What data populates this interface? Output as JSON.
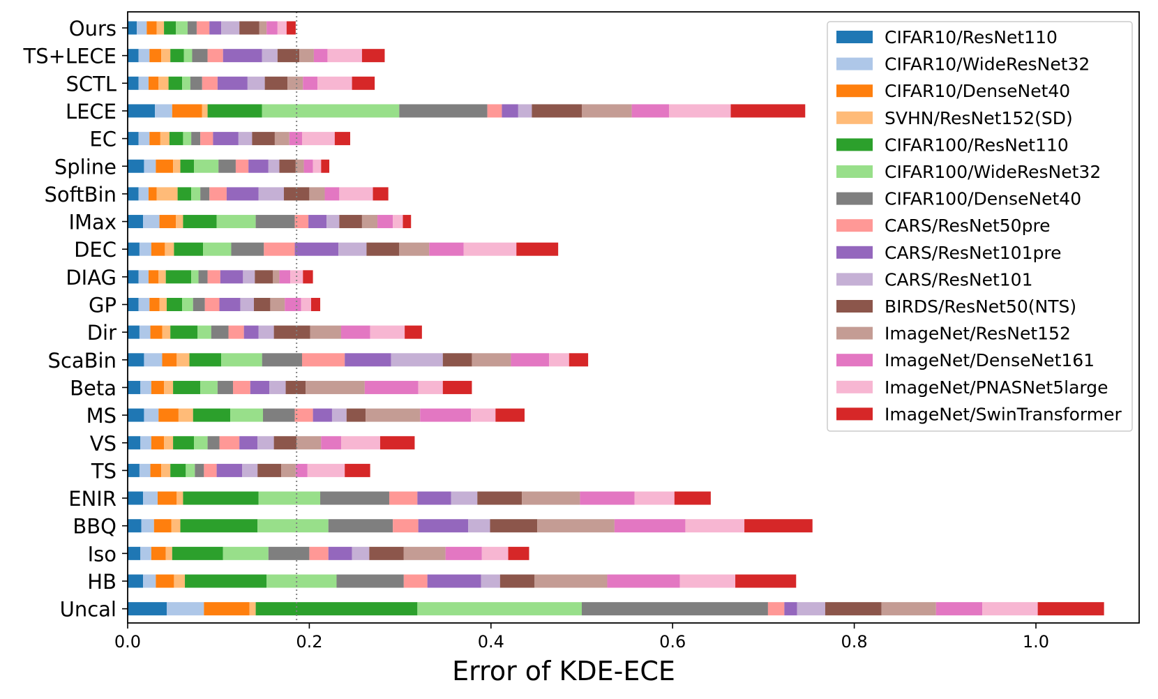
{
  "chart_data": {
    "type": "bar",
    "orientation": "horizontal",
    "stacked": true,
    "title": "",
    "xlabel": "Error of KDE-ECE",
    "ylabel": "",
    "xlim": [
      0,
      1.12
    ],
    "xticks": [
      0.0,
      0.2,
      0.4,
      0.6,
      0.8,
      1.0
    ],
    "xtick_labels": [
      "0.0",
      "0.2",
      "0.4",
      "0.6",
      "0.8",
      "1.0"
    ],
    "grid": false,
    "legend_position": "top-right",
    "reference_line": {
      "x": 0.186,
      "style": "dotted",
      "color": "#808080"
    },
    "categories": [
      "Ours",
      "TS+LECE",
      "SCTL",
      "LECE",
      "EC",
      "Spline",
      "SoftBin",
      "IMax",
      "DEC",
      "DIAG",
      "GP",
      "Dir",
      "ScaBin",
      "Beta",
      "MS",
      "VS",
      "TS",
      "ENIR",
      "BBQ",
      "Iso",
      "HB",
      "Uncal"
    ],
    "series": [
      {
        "name": "CIFAR10/ResNet110",
        "color": "#1f77b4",
        "values": [
          0.01,
          0.012,
          0.012,
          0.03,
          0.012,
          0.018,
          0.012,
          0.017,
          0.013,
          0.012,
          0.012,
          0.013,
          0.018,
          0.014,
          0.018,
          0.014,
          0.013,
          0.017,
          0.015,
          0.014,
          0.017,
          0.043
        ]
      },
      {
        "name": "CIFAR10/WideResNet32",
        "color": "#aec7e8",
        "values": [
          0.011,
          0.012,
          0.011,
          0.019,
          0.012,
          0.013,
          0.011,
          0.018,
          0.013,
          0.011,
          0.012,
          0.012,
          0.02,
          0.012,
          0.016,
          0.012,
          0.012,
          0.016,
          0.014,
          0.012,
          0.014,
          0.041
        ]
      },
      {
        "name": "CIFAR10/DenseNet40",
        "color": "#ff7f0e",
        "values": [
          0.011,
          0.013,
          0.011,
          0.033,
          0.012,
          0.019,
          0.009,
          0.018,
          0.015,
          0.011,
          0.011,
          0.013,
          0.016,
          0.014,
          0.022,
          0.014,
          0.012,
          0.021,
          0.019,
          0.016,
          0.02,
          0.05
        ]
      },
      {
        "name": "SVHN/ResNet152(SD)",
        "color": "#ffbb78",
        "values": [
          0.008,
          0.01,
          0.011,
          0.006,
          0.01,
          0.008,
          0.023,
          0.008,
          0.01,
          0.008,
          0.008,
          0.009,
          0.014,
          0.01,
          0.016,
          0.01,
          0.01,
          0.007,
          0.01,
          0.007,
          0.012,
          0.007
        ]
      },
      {
        "name": "CIFAR100/ResNet110",
        "color": "#2ca02c",
        "values": [
          0.013,
          0.015,
          0.015,
          0.06,
          0.015,
          0.015,
          0.015,
          0.037,
          0.032,
          0.028,
          0.017,
          0.03,
          0.035,
          0.03,
          0.041,
          0.023,
          0.017,
          0.083,
          0.085,
          0.056,
          0.09,
          0.178
        ]
      },
      {
        "name": "CIFAR100/WideResNet32",
        "color": "#98df8a",
        "values": [
          0.013,
          0.009,
          0.009,
          0.151,
          0.009,
          0.027,
          0.01,
          0.043,
          0.031,
          0.008,
          0.012,
          0.015,
          0.045,
          0.019,
          0.036,
          0.015,
          0.01,
          0.068,
          0.078,
          0.05,
          0.077,
          0.181
        ]
      },
      {
        "name": "CIFAR100/DenseNet40",
        "color": "#7f7f7f",
        "values": [
          0.01,
          0.017,
          0.013,
          0.097,
          0.01,
          0.019,
          0.01,
          0.043,
          0.036,
          0.01,
          0.013,
          0.019,
          0.044,
          0.017,
          0.035,
          0.013,
          0.01,
          0.076,
          0.071,
          0.045,
          0.074,
          0.205
        ]
      },
      {
        "name": "CARS/ResNet50pre",
        "color": "#ff9896",
        "values": [
          0.014,
          0.017,
          0.017,
          0.016,
          0.014,
          0.014,
          0.019,
          0.015,
          0.034,
          0.014,
          0.016,
          0.017,
          0.047,
          0.019,
          0.02,
          0.022,
          0.014,
          0.031,
          0.028,
          0.021,
          0.026,
          0.018
        ]
      },
      {
        "name": "CARS/ResNet101pre",
        "color": "#9467bd",
        "values": [
          0.013,
          0.043,
          0.033,
          0.018,
          0.028,
          0.022,
          0.035,
          0.02,
          0.048,
          0.025,
          0.023,
          0.016,
          0.051,
          0.021,
          0.021,
          0.02,
          0.028,
          0.037,
          0.055,
          0.026,
          0.059,
          0.014
        ]
      },
      {
        "name": "CARS/ResNet101",
        "color": "#c5b0d5",
        "values": [
          0.02,
          0.017,
          0.019,
          0.015,
          0.015,
          0.012,
          0.028,
          0.014,
          0.031,
          0.013,
          0.015,
          0.017,
          0.057,
          0.018,
          0.016,
          0.018,
          0.017,
          0.029,
          0.024,
          0.019,
          0.021,
          0.031
        ]
      },
      {
        "name": "BIRDS/ResNet50(NTS)",
        "color": "#8c564b",
        "values": [
          0.022,
          0.024,
          0.025,
          0.055,
          0.025,
          0.018,
          0.028,
          0.025,
          0.036,
          0.02,
          0.018,
          0.04,
          0.032,
          0.022,
          0.021,
          0.025,
          0.026,
          0.049,
          0.052,
          0.038,
          0.038,
          0.062
        ]
      },
      {
        "name": "ImageNet/ResNet152",
        "color": "#c49c94",
        "values": [
          0.008,
          0.016,
          0.017,
          0.055,
          0.016,
          0.009,
          0.017,
          0.017,
          0.033,
          0.007,
          0.016,
          0.034,
          0.043,
          0.065,
          0.06,
          0.027,
          0.016,
          0.064,
          0.085,
          0.046,
          0.08,
          0.06
        ]
      },
      {
        "name": "ImageNet/DenseNet161",
        "color": "#e377c2",
        "values": [
          0.012,
          0.015,
          0.016,
          0.041,
          0.014,
          0.01,
          0.016,
          0.017,
          0.038,
          0.012,
          0.018,
          0.032,
          0.042,
          0.059,
          0.056,
          0.022,
          0.013,
          0.06,
          0.078,
          0.04,
          0.08,
          0.051
        ]
      },
      {
        "name": "ImageNet/PNASNet5large",
        "color": "#f7b6d2",
        "values": [
          0.01,
          0.038,
          0.038,
          0.068,
          0.036,
          0.009,
          0.037,
          0.011,
          0.058,
          0.014,
          0.011,
          0.038,
          0.022,
          0.027,
          0.027,
          0.043,
          0.041,
          0.044,
          0.065,
          0.029,
          0.061,
          0.061
        ]
      },
      {
        "name": "ImageNet/SwinTransformer",
        "color": "#d62728",
        "values": [
          0.01,
          0.025,
          0.025,
          0.082,
          0.017,
          0.009,
          0.017,
          0.009,
          0.046,
          0.011,
          0.01,
          0.019,
          0.021,
          0.032,
          0.032,
          0.038,
          0.028,
          0.04,
          0.075,
          0.023,
          0.067,
          0.073
        ]
      }
    ]
  }
}
